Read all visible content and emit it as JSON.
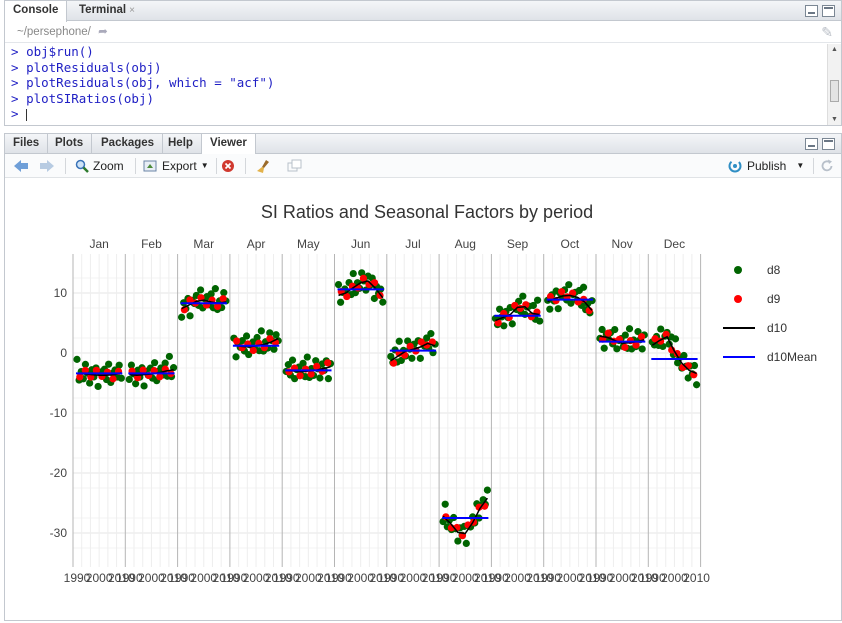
{
  "console_pane": {
    "tabs": [
      {
        "label": "Console"
      },
      {
        "label": "Terminal",
        "close": "×"
      }
    ],
    "path": "~/persephone/",
    "lines": [
      {
        "prompt": ">",
        "code": "obj$run()"
      },
      {
        "prompt": ">",
        "code": "plotResiduals(obj)"
      },
      {
        "prompt": ">",
        "code": "plotResiduals(obj, which = \"acf\")"
      },
      {
        "prompt": ">",
        "code": "plotSIRatios(obj)"
      },
      {
        "prompt": ">",
        "code": ""
      }
    ]
  },
  "viewer_pane": {
    "tabs": [
      {
        "label": "Files"
      },
      {
        "label": "Plots"
      },
      {
        "label": "Packages"
      },
      {
        "label": "Help"
      },
      {
        "label": "Viewer"
      }
    ],
    "toolbar": {
      "zoom": "Zoom",
      "export": "Export",
      "publish": "Publish"
    }
  },
  "colors": {
    "d8": "#006400",
    "d9": "#ff0000",
    "d10": "#000000",
    "d10Mean": "#0000ff"
  },
  "chart_data": {
    "type": "scatter",
    "title": "SI Ratios and Seasonal Factors by period",
    "facets": [
      "Jan",
      "Feb",
      "Mar",
      "Apr",
      "May",
      "Jun",
      "Jul",
      "Aug",
      "Sep",
      "Oct",
      "Nov",
      "Dec"
    ],
    "x_tick_labels": [
      "1990",
      "2000",
      "2010"
    ],
    "ylim": [
      -35,
      17
    ],
    "y_ticks": [
      10,
      0,
      -10,
      -20,
      -30
    ],
    "y_tick_labels": [
      "10",
      "0",
      "-10",
      "-20",
      "-30"
    ],
    "grid": true,
    "legend_position": "right",
    "series": [
      {
        "name": "d8",
        "kind": "points"
      },
      {
        "name": "d9",
        "kind": "points"
      },
      {
        "name": "d10",
        "kind": "line"
      },
      {
        "name": "d10Mean",
        "kind": "line"
      }
    ],
    "d10Mean": [
      -3.4,
      -3.4,
      8.3,
      1.2,
      -2.9,
      10.6,
      0.4,
      -27.5,
      6.2,
      8.9,
      1.9,
      -1.0
    ],
    "d10_profile": [
      [
        -3.4,
        -3.5,
        -3.6,
        -3.7,
        -3.7,
        -3.6,
        -3.3
      ],
      [
        -3.6,
        -3.7,
        -3.6,
        -3.5,
        -3.3,
        -3.0,
        -2.8
      ],
      [
        7.4,
        8.0,
        8.6,
        8.8,
        8.5,
        8.3,
        8.5
      ],
      [
        1.3,
        1.1,
        1.0,
        1.2,
        1.4,
        1.8,
        2.4
      ],
      [
        -2.9,
        -3.0,
        -3.1,
        -3.0,
        -2.9,
        -2.6,
        -2.3
      ],
      [
        9.6,
        10.0,
        10.9,
        11.7,
        12.0,
        10.8,
        9.2
      ],
      [
        -1.3,
        -0.5,
        0.3,
        0.6,
        1.0,
        1.6,
        1.2
      ],
      [
        -27.2,
        -28.4,
        -29.9,
        -30.1,
        -28.3,
        -25.9,
        -24.2
      ],
      [
        5.4,
        5.9,
        6.4,
        7.6,
        7.7,
        6.6,
        6.4
      ],
      [
        8.6,
        9.1,
        9.5,
        9.6,
        9.3,
        8.5,
        7.1
      ],
      [
        2.8,
        2.6,
        2.1,
        1.6,
        1.7,
        1.9,
        2.2
      ],
      [
        1.3,
        2.1,
        2.7,
        0.3,
        -1.7,
        -2.9,
        -3.4
      ]
    ],
    "d8_offsets": [
      2.6,
      -1.2,
      0.4,
      -0.9,
      1.8,
      0.2,
      -1.6,
      0.9,
      -0.4,
      1.3,
      -2.1,
      0.6,
      -0.2,
      1.1,
      -0.8,
      2.0,
      -1.4,
      0.3,
      0.8,
      -0.6,
      1.5,
      -1.0
    ],
    "d9_offsets": [
      -0.8,
      0.9,
      -0.6,
      1.1,
      -0.3,
      0.7,
      -1.0,
      0.5
    ]
  }
}
